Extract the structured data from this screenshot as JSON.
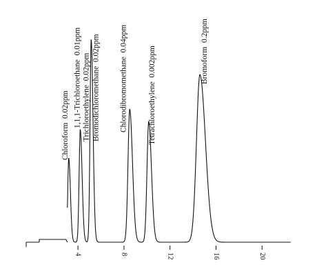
{
  "chart_data": {
    "type": "line",
    "title": "",
    "xlabel": "",
    "ylabel": "",
    "x_ticks": [
      "4",
      "8",
      "12",
      "16",
      "20"
    ],
    "x_tick_values": [
      4,
      8,
      12,
      16,
      20
    ],
    "xlim": [
      -0.5,
      22.5
    ],
    "ylim": [
      0,
      100
    ],
    "grid": false,
    "series": [
      {
        "peaks": [
          {
            "rt": 3.2,
            "height": 41,
            "width": 0.09
          },
          {
            "rt": 4.2,
            "height": 55,
            "width": 0.1
          },
          {
            "rt": 5.15,
            "height": 99,
            "width": 0.1
          },
          {
            "rt": 8.5,
            "height": 65,
            "width": 0.15
          },
          {
            "rt": 10.15,
            "height": 59,
            "width": 0.15
          },
          {
            "rt": 14.6,
            "height": 82,
            "width": 0.3
          }
        ]
      }
    ],
    "annotations": [
      {
        "rt": 3.2,
        "text": "Chloroform  0.02ppm"
      },
      {
        "rt": 4.2,
        "text": "1,1,1-Trichloroethane  0.01ppm"
      },
      {
        "rt": 5.15,
        "text": "Trichloroethylene  0.02ppm"
      },
      {
        "rt": 5.15,
        "text": "Bromodichloromethane  0.02ppm"
      },
      {
        "rt": 8.5,
        "text": "Chlorodibromomethane  0.04ppm"
      },
      {
        "rt": 10.15,
        "text": "Tetrachloroethylene  0.002ppm"
      },
      {
        "rt": 14.6,
        "text": "Bromoform  0.2ppm"
      }
    ]
  }
}
